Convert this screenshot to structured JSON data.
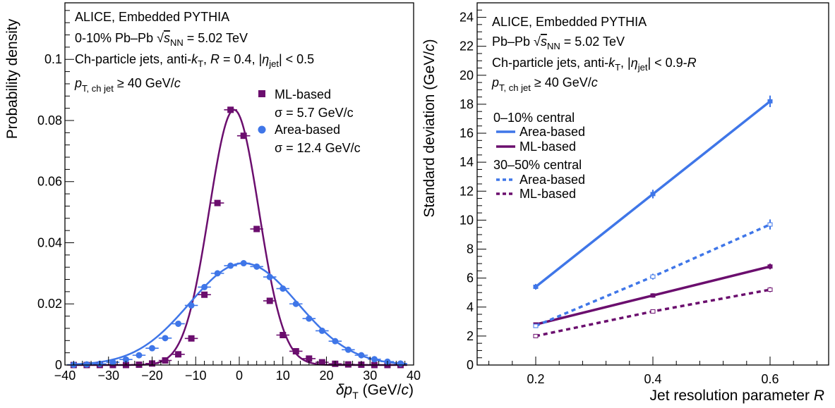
{
  "chart_data": [
    {
      "type": "scatter",
      "xlabel": "δp_T (GeV/c)",
      "ylabel": "Probability density",
      "xlim": [
        -40,
        40
      ],
      "ylim": [
        0,
        0.1185
      ],
      "x_ticks": [
        -40,
        -30,
        -20,
        -10,
        0,
        10,
        20,
        30,
        40
      ],
      "x_tick_labels": [
        "−40",
        "−30",
        "−20",
        "−10",
        "0",
        "10",
        "20",
        "30",
        "40"
      ],
      "y_ticks": [
        0,
        0.02,
        0.04,
        0.06,
        0.08,
        0.1
      ],
      "y_tick_labels": [
        "0",
        "0.02",
        "0.04",
        "0.06",
        "0.08",
        "0.1"
      ],
      "annotations": [
        "ALICE, Embedded PYTHIA",
        "0-10% Pb–Pb √s_NN = 5.02 TeV",
        "Ch-particle jets, anti-k_T, R = 0.4, |η_jet| < 0.5",
        "p_T, ch jet ≥ 40 GeV/c"
      ],
      "legend_position": "upper-right",
      "series": [
        {
          "name": "ML-based",
          "sigma_label": "σ = 5.7 GeV/c",
          "color": "#6b0e6e",
          "marker": "square",
          "x": [
            -38,
            -35,
            -32,
            -29,
            -26,
            -23,
            -20,
            -17,
            -14,
            -11,
            -8,
            -5,
            -2,
            1,
            4,
            7,
            10,
            13,
            16,
            19,
            22,
            25,
            28,
            31,
            34,
            37
          ],
          "y": [
            0,
            0,
            0,
            0,
            0,
            0.0001,
            0.0005,
            0.0015,
            0.0035,
            0.0087,
            0.023,
            0.053,
            0.0835,
            0.075,
            0.0445,
            0.021,
            0.0098,
            0.0045,
            0.0021,
            0.0009,
            0.0004,
            0.0002,
            0.0001,
            0,
            0,
            0
          ],
          "fit": {
            "function": "gaussian",
            "mean": -1.2,
            "sigma": 5.7,
            "amplitude": 0.0835
          }
        },
        {
          "name": "Area-based",
          "sigma_label": "σ = 12.4 GeV/c",
          "color": "#3f76e8",
          "marker": "circle",
          "x": [
            -38,
            -35,
            -32,
            -29,
            -26,
            -23,
            -20,
            -17,
            -14,
            -11,
            -8,
            -5,
            -2,
            1,
            4,
            7,
            10,
            13,
            16,
            19,
            22,
            25,
            28,
            31,
            34,
            37
          ],
          "y": [
            0.0001,
            0.0002,
            0.0004,
            0.0009,
            0.0018,
            0.0032,
            0.0055,
            0.0088,
            0.0135,
            0.0195,
            0.0255,
            0.03,
            0.0325,
            0.0333,
            0.0322,
            0.0288,
            0.025,
            0.02,
            0.0152,
            0.0112,
            0.0078,
            0.005,
            0.0032,
            0.0019,
            0.0011,
            0.0005
          ],
          "fit": {
            "function": "gaussian",
            "mean": 1.0,
            "sigma": 12.4,
            "amplitude": 0.0333
          }
        }
      ]
    },
    {
      "type": "line",
      "xlabel": "Jet resolution parameter R",
      "ylabel": "Standard deviation (GeV/c)",
      "xlim": [
        0.1,
        0.7
      ],
      "ylim": [
        0,
        25
      ],
      "x_ticks": [
        0.2,
        0.4,
        0.6
      ],
      "x_tick_labels": [
        "0.2",
        "0.4",
        "0.6"
      ],
      "y_ticks": [
        0,
        2,
        4,
        6,
        8,
        10,
        12,
        14,
        16,
        18,
        20,
        22,
        24
      ],
      "y_tick_labels": [
        "0",
        "2",
        "4",
        "6",
        "8",
        "10",
        "12",
        "14",
        "16",
        "18",
        "20",
        "22",
        "24"
      ],
      "annotations": [
        "ALICE, Embedded PYTHIA",
        "Pb–Pb √s_NN = 5.02 TeV",
        "Ch-particle jets, anti-k_T, |η_jet| < 0.9-R",
        "p_T, ch jet ≥ 40 GeV/c"
      ],
      "legend_position": "upper-left",
      "legend_groups": [
        "0–10% central",
        "30–50% central"
      ],
      "x": [
        0.2,
        0.4,
        0.6
      ],
      "series": [
        {
          "name": "Area-based",
          "group": "0–10% central",
          "style": "solid",
          "color": "#3f76e8",
          "values": [
            5.4,
            11.8,
            18.2
          ],
          "errors": [
            0.15,
            0.25,
            0.35
          ]
        },
        {
          "name": "ML-based",
          "group": "0–10% central",
          "style": "solid",
          "color": "#6b0e6e",
          "values": [
            2.8,
            4.8,
            6.8
          ],
          "errors": [
            0.08,
            0.1,
            0.15
          ]
        },
        {
          "name": "Area-based",
          "group": "30–50% central",
          "style": "dashed",
          "color": "#3f76e8",
          "values": [
            2.7,
            6.1,
            9.7
          ],
          "errors": [
            0.08,
            0.15,
            0.3
          ]
        },
        {
          "name": "ML-based",
          "group": "30–50% central",
          "style": "dashed",
          "color": "#6b0e6e",
          "values": [
            2.0,
            3.7,
            5.2
          ],
          "errors": [
            0.05,
            0.08,
            0.12
          ]
        }
      ]
    }
  ]
}
